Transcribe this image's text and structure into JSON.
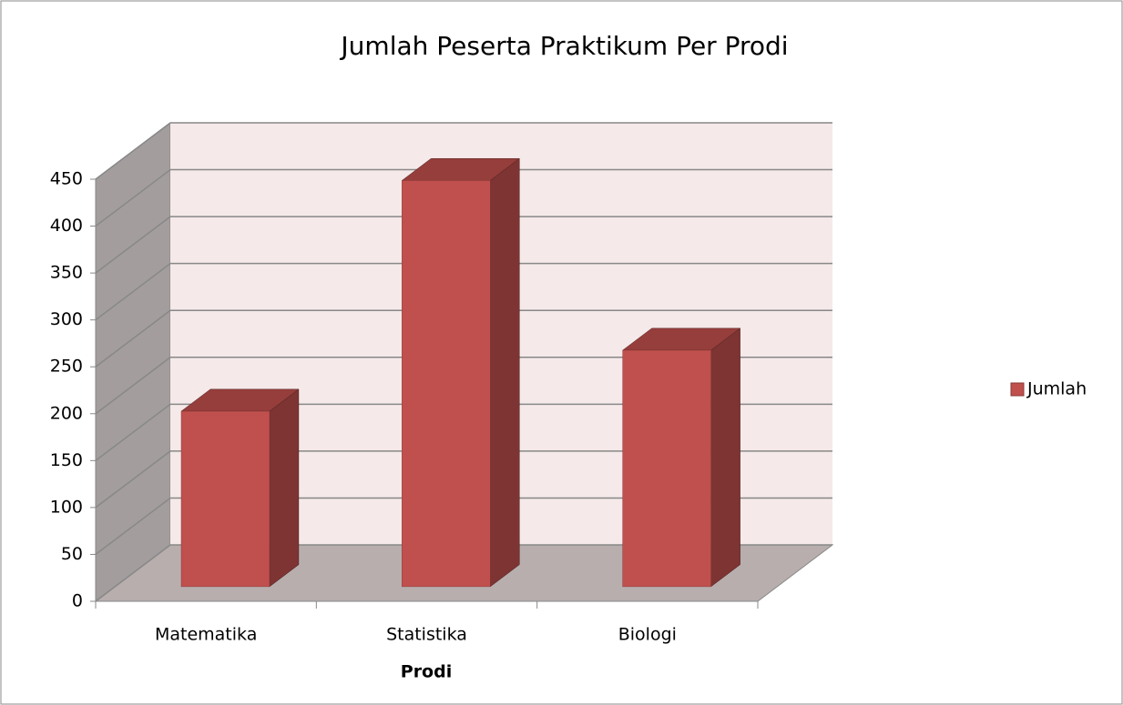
{
  "chart_data": {
    "type": "bar3d",
    "title": "Jumlah Peserta Praktikum Per Prodi",
    "x_label": "Prodi",
    "categories": [
      "Matematika",
      "Statistika",
      "Biologi"
    ],
    "series": [
      {
        "name": "Jumlah",
        "color": "#c0504d",
        "values": [
          187,
          433,
          252
        ]
      }
    ],
    "ylim": [
      0,
      450
    ],
    "yticks": [
      0,
      50,
      100,
      150,
      200,
      250,
      300,
      350,
      400,
      450
    ],
    "grid": true,
    "legend": "right"
  }
}
